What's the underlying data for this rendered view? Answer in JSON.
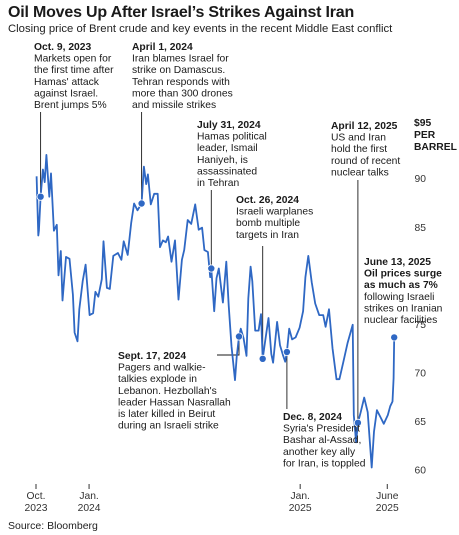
{
  "title": "Oil Moves Up After Israel’s Strikes Against Iran",
  "subtitle": "Closing price of Brent crude and key events in the recent Middle East conflict",
  "source": "Source: Bloomberg",
  "colors": {
    "line": "#2f68c4",
    "marker": "#2f68c4",
    "leader": "#1a1a1a",
    "text": "#1a1a1a"
  },
  "chart_data": {
    "type": "line",
    "title": "Oil Moves Up After Israel’s Strikes Against Iran",
    "subtitle": "Closing price of Brent crude and key events in the recent Middle East conflict",
    "ylabel": "",
    "unit_label": [
      "$95",
      "PER",
      "BARREL"
    ],
    "ylim": [
      58.5,
      96
    ],
    "y_ticks": [
      60,
      65,
      70,
      75,
      85,
      90
    ],
    "x_start": "2023-10-01",
    "x_end": "2025-06-30",
    "x_ticks": [
      {
        "date": "2023-10-01",
        "lines": [
          "Oct.",
          "2023"
        ]
      },
      {
        "date": "2024-01-01",
        "lines": [
          "Jan.",
          "2024"
        ]
      },
      {
        "date": "2025-01-01",
        "lines": [
          "Jan.",
          "2025"
        ]
      },
      {
        "date": "2025-06-01",
        "lines": [
          "June",
          "2025"
        ]
      }
    ],
    "grid": false,
    "series": [
      {
        "points": [
          [
            "2023-10-02",
            90.2
          ],
          [
            "2023-10-05",
            84.1
          ],
          [
            "2023-10-06",
            84.6
          ],
          [
            "2023-10-09",
            88.1
          ],
          [
            "2023-10-13",
            90.9
          ],
          [
            "2023-10-16",
            89.6
          ],
          [
            "2023-10-19",
            92.4
          ],
          [
            "2023-10-24",
            88.1
          ],
          [
            "2023-10-27",
            90.5
          ],
          [
            "2023-11-01",
            84.6
          ],
          [
            "2023-11-06",
            85.2
          ],
          [
            "2023-11-09",
            80.0
          ],
          [
            "2023-11-13",
            82.5
          ],
          [
            "2023-11-16",
            77.4
          ],
          [
            "2023-11-22",
            81.9
          ],
          [
            "2023-11-28",
            81.7
          ],
          [
            "2023-12-04",
            78.0
          ],
          [
            "2023-12-07",
            74.1
          ],
          [
            "2023-12-12",
            73.2
          ],
          [
            "2023-12-15",
            76.5
          ],
          [
            "2023-12-21",
            79.4
          ],
          [
            "2023-12-26",
            81.1
          ],
          [
            "2024-01-02",
            75.9
          ],
          [
            "2024-01-08",
            76.1
          ],
          [
            "2024-01-12",
            78.3
          ],
          [
            "2024-01-17",
            77.8
          ],
          [
            "2024-01-23",
            79.6
          ],
          [
            "2024-01-26",
            83.5
          ],
          [
            "2024-02-01",
            78.7
          ],
          [
            "2024-02-06",
            78.6
          ],
          [
            "2024-02-12",
            82.0
          ],
          [
            "2024-02-20",
            82.3
          ],
          [
            "2024-02-26",
            81.6
          ],
          [
            "2024-03-01",
            83.5
          ],
          [
            "2024-03-08",
            82.1
          ],
          [
            "2024-03-14",
            85.4
          ],
          [
            "2024-03-19",
            87.4
          ],
          [
            "2024-03-25",
            86.7
          ],
          [
            "2024-04-01",
            87.4
          ],
          [
            "2024-04-05",
            91.2
          ],
          [
            "2024-04-09",
            89.4
          ],
          [
            "2024-04-12",
            90.4
          ],
          [
            "2024-04-17",
            87.3
          ],
          [
            "2024-04-23",
            88.4
          ],
          [
            "2024-04-29",
            88.4
          ],
          [
            "2024-05-03",
            82.9
          ],
          [
            "2024-05-08",
            83.6
          ],
          [
            "2024-05-13",
            83.4
          ],
          [
            "2024-05-17",
            84.0
          ],
          [
            "2024-05-23",
            81.4
          ],
          [
            "2024-05-29",
            83.6
          ],
          [
            "2024-06-04",
            77.5
          ],
          [
            "2024-06-10",
            81.6
          ],
          [
            "2024-06-14",
            82.6
          ],
          [
            "2024-06-20",
            85.7
          ],
          [
            "2024-06-26",
            85.3
          ],
          [
            "2024-07-03",
            87.3
          ],
          [
            "2024-07-09",
            84.7
          ],
          [
            "2024-07-15",
            84.9
          ],
          [
            "2024-07-19",
            82.6
          ],
          [
            "2024-07-25",
            82.4
          ],
          [
            "2024-07-29",
            79.8
          ],
          [
            "2024-07-31",
            80.7
          ],
          [
            "2024-08-05",
            76.3
          ],
          [
            "2024-08-09",
            79.7
          ],
          [
            "2024-08-13",
            80.7
          ],
          [
            "2024-08-20",
            77.2
          ],
          [
            "2024-08-26",
            81.4
          ],
          [
            "2024-08-30",
            76.9
          ],
          [
            "2024-09-04",
            72.7
          ],
          [
            "2024-09-10",
            69.2
          ],
          [
            "2024-09-13",
            71.6
          ],
          [
            "2024-09-17",
            73.7
          ],
          [
            "2024-09-20",
            74.5
          ],
          [
            "2024-09-25",
            73.5
          ],
          [
            "2024-09-30",
            71.7
          ],
          [
            "2024-10-03",
            77.6
          ],
          [
            "2024-10-07",
            80.9
          ],
          [
            "2024-10-10",
            79.4
          ],
          [
            "2024-10-15",
            74.3
          ],
          [
            "2024-10-21",
            74.3
          ],
          [
            "2024-10-25",
            76.0
          ],
          [
            "2024-10-28",
            71.4
          ],
          [
            "2024-11-01",
            73.1
          ],
          [
            "2024-11-07",
            75.6
          ],
          [
            "2024-11-12",
            71.9
          ],
          [
            "2024-11-15",
            71.0
          ],
          [
            "2024-11-22",
            75.2
          ],
          [
            "2024-11-27",
            72.8
          ],
          [
            "2024-12-02",
            71.8
          ],
          [
            "2024-12-06",
            71.1
          ],
          [
            "2024-12-09",
            72.1
          ],
          [
            "2024-12-13",
            74.5
          ],
          [
            "2024-12-18",
            73.4
          ],
          [
            "2024-12-24",
            73.6
          ],
          [
            "2024-12-31",
            74.6
          ],
          [
            "2025-01-06",
            76.3
          ],
          [
            "2025-01-10",
            79.8
          ],
          [
            "2025-01-15",
            82.0
          ],
          [
            "2025-01-21",
            79.3
          ],
          [
            "2025-01-27",
            77.1
          ],
          [
            "2025-02-03",
            75.9
          ],
          [
            "2025-02-10",
            75.9
          ],
          [
            "2025-02-14",
            74.7
          ],
          [
            "2025-02-20",
            76.5
          ],
          [
            "2025-02-26",
            72.5
          ],
          [
            "2025-03-05",
            69.3
          ],
          [
            "2025-03-10",
            69.3
          ],
          [
            "2025-03-17",
            71.1
          ],
          [
            "2025-03-24",
            73.0
          ],
          [
            "2025-04-02",
            74.9
          ],
          [
            "2025-04-04",
            65.6
          ],
          [
            "2025-04-08",
            62.8
          ],
          [
            "2025-04-11",
            64.8
          ],
          [
            "2025-04-16",
            65.9
          ],
          [
            "2025-04-22",
            67.4
          ],
          [
            "2025-04-28",
            65.9
          ],
          [
            "2025-05-05",
            60.2
          ],
          [
            "2025-05-09",
            63.9
          ],
          [
            "2025-05-14",
            66.1
          ],
          [
            "2025-05-20",
            65.4
          ],
          [
            "2025-05-26",
            64.7
          ],
          [
            "2025-06-02",
            65.6
          ],
          [
            "2025-06-06",
            66.5
          ],
          [
            "2025-06-10",
            67.0
          ],
          [
            "2025-06-12",
            69.4
          ],
          [
            "2025-06-13",
            73.6
          ]
        ]
      }
    ],
    "events": [
      {
        "key": "oct9",
        "date": "2023-10-09",
        "value": 88.1,
        "label_pos": "top-left",
        "date_label": "Oct. 9, 2023",
        "lines": [
          "Markets open for",
          "the first time after",
          "Hamas' attack",
          "against Israel.",
          "Brent jumps 5%"
        ]
      },
      {
        "key": "apr1",
        "date": "2024-04-01",
        "value": 87.4,
        "label_pos": "top",
        "date_label": "April 1, 2024",
        "lines": [
          "Iran blames Israel for",
          "strike on Damascus.",
          "Tehran responds with",
          "more than 300 drones",
          "and missile strikes"
        ]
      },
      {
        "key": "jul31",
        "date": "2024-07-31",
        "value": 80.7,
        "label_pos": "top",
        "date_label": "July 31, 2024",
        "lines": [
          "Hamas political",
          "leader, Ismail",
          "Haniyeh, is",
          "assassinated",
          "in Tehran"
        ]
      },
      {
        "key": "oct26",
        "date": "2024-10-28",
        "value": 71.4,
        "label_pos": "top",
        "date_label": "Oct. 26, 2024",
        "lines": [
          "Israeli warplanes",
          "bomb multiple",
          "targets in Iran"
        ]
      },
      {
        "key": "sep17",
        "date": "2024-09-17",
        "value": 73.7,
        "label_pos": "bottom-left",
        "date_label": "Sept. 17, 2024",
        "lines": [
          "Pagers and walkie-",
          "talkies explode in",
          "Lebanon. Hezbollah's",
          "leader Hassan Nasrallah",
          "is later killed in Beirut",
          "during an Israeli strike"
        ]
      },
      {
        "key": "dec8",
        "date": "2024-12-09",
        "value": 72.1,
        "label_pos": "bottom",
        "date_label": "Dec. 8, 2024",
        "lines": [
          "Syria's President",
          "Bashar al-Assad,",
          "another key ally",
          "for Iran, is toppled"
        ]
      },
      {
        "key": "apr12",
        "date": "2025-04-11",
        "value": 64.8,
        "label_pos": "top",
        "date_label": "April 12, 2025",
        "lines": [
          "US and Iran",
          "hold the first",
          "round of recent",
          "nuclear talks"
        ]
      },
      {
        "key": "jun13",
        "date": "2025-06-13",
        "value": 73.6,
        "label_pos": "right",
        "date_label": "June 13, 2025",
        "bold_lines": [
          "Oil prices surge",
          "as much as 7%"
        ],
        "lines": [
          "following Israeli",
          "strikes on Iranian",
          "nuclear facilities"
        ]
      }
    ]
  }
}
